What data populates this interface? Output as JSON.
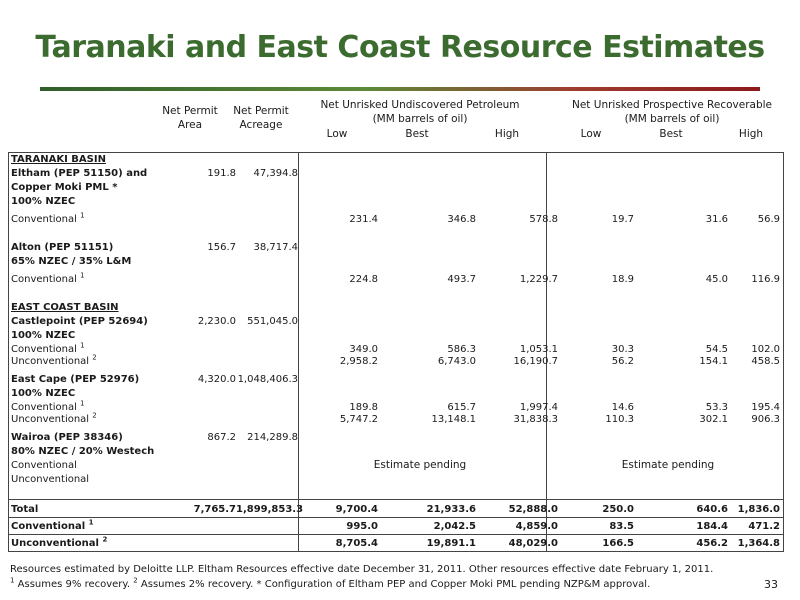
{
  "title": "Taranaki and East Coast Resource Estimates",
  "headers": {
    "area": "Net Permit Area",
    "acreage": "Net Permit Acreage",
    "unrisked_undiscovered": "Net Unrisked Undiscovered Petroleum",
    "unrisked_undiscovered_unit": "(MM barrels of oil)",
    "unrisked_prospective": "Net Unrisked Prospective Recoverable",
    "unrisked_prospective_unit": "(MM barrels of oil)",
    "low": "Low",
    "best": "Best",
    "high": "High"
  },
  "rows": [
    {
      "label": "TARANAKI BASIN",
      "style": "ul"
    },
    {
      "label": "Eltham (PEP 51150) and",
      "style": "bold",
      "area": "191.8",
      "acreage": "47,394.8"
    },
    {
      "label": "Copper Moki PML *",
      "style": "bold"
    },
    {
      "label": "100% NZEC",
      "style": "bold"
    },
    {
      "label": "Conventional",
      "sup": "1",
      "u_low": "231.4",
      "u_best": "346.8",
      "u_high": "578.8",
      "p_low": "19.7",
      "p_best": "31.6",
      "p_high": "56.9"
    },
    {
      "label": "Alton (PEP 51151)",
      "style": "bold",
      "area": "156.7",
      "acreage": "38,717.4"
    },
    {
      "label": "65% NZEC / 35% L&M",
      "style": "bold"
    },
    {
      "label": "Conventional",
      "sup": "1",
      "u_low": "224.8",
      "u_best": "493.7",
      "u_high": "1,229.7",
      "p_low": "18.9",
      "p_best": "45.0",
      "p_high": "116.9"
    },
    {
      "label": "EAST COAST BASIN",
      "style": "ul"
    },
    {
      "label": "Castlepoint (PEP 52694)",
      "style": "bold",
      "area": "2,230.0",
      "acreage": "551,045.0"
    },
    {
      "label": "100% NZEC",
      "style": "bold"
    },
    {
      "label": "Conventional",
      "sup": "1",
      "u_low": "349.0",
      "u_best": "586.3",
      "u_high": "1,053.1",
      "p_low": "30.3",
      "p_best": "54.5",
      "p_high": "102.0"
    },
    {
      "label": "Unconventional",
      "sup": "2",
      "u_low": "2,958.2",
      "u_best": "6,743.0",
      "u_high": "16,190.7",
      "p_low": "56.2",
      "p_best": "154.1",
      "p_high": "458.5"
    },
    {
      "label": "East Cape (PEP 52976)",
      "style": "bold",
      "area": "4,320.0",
      "acreage": "1,048,406.3"
    },
    {
      "label": "100% NZEC",
      "style": "bold"
    },
    {
      "label": "Conventional",
      "sup": "1",
      "u_low": "189.8",
      "u_best": "615.7",
      "u_high": "1,997.4",
      "p_low": "14.6",
      "p_best": "53.3",
      "p_high": "195.4"
    },
    {
      "label": "Unconventional",
      "sup": "2",
      "u_low": "5,747.2",
      "u_best": "13,148.1",
      "u_high": "31,838.3",
      "p_low": "110.3",
      "p_best": "302.1",
      "p_high": "906.3"
    },
    {
      "label": "Wairoa (PEP 38346)",
      "style": "bold",
      "area": "867.2",
      "acreage": "214,289.8"
    },
    {
      "label": "80% NZEC / 20% Westech",
      "style": "bold"
    },
    {
      "label": "Conventional"
    },
    {
      "label": "Unconventional"
    },
    {
      "label": "Total",
      "style": "bold",
      "area": "7,765.7",
      "acreage": "1,899,853.3",
      "u_low": "9,700.4",
      "u_best": "21,933.6",
      "u_high": "52,888.0",
      "p_low": "250.0",
      "p_best": "640.6",
      "p_high": "1,836.0"
    },
    {
      "label": "Conventional",
      "sup": "1",
      "style": "bold",
      "u_low": "995.0",
      "u_best": "2,042.5",
      "u_high": "4,859.0",
      "p_low": "83.5",
      "p_best": "184.4",
      "p_high": "471.2"
    },
    {
      "label": "Unconventional",
      "sup": "2",
      "style": "bold",
      "u_low": "8,705.4",
      "u_best": "19,891.1",
      "u_high": "48,029.0",
      "p_low": "166.5",
      "p_best": "456.2",
      "p_high": "1,364.8"
    }
  ],
  "pending": {
    "undiscovered": "Estimate pending",
    "prospective": "Estimate pending"
  },
  "footnotes": {
    "line1": "Resources estimated by Deloitte LLP. Eltham Resources effective date December 31, 2011. Other resources effective date February 1, 2011.",
    "sup1": "1",
    "line2a": " Assumes 9% recovery. ",
    "sup2": "2",
    "line2b": " Assumes 2% recovery. * Configuration of Eltham PEP and Copper Moki PML pending NZP&M approval."
  },
  "page_number": "33"
}
